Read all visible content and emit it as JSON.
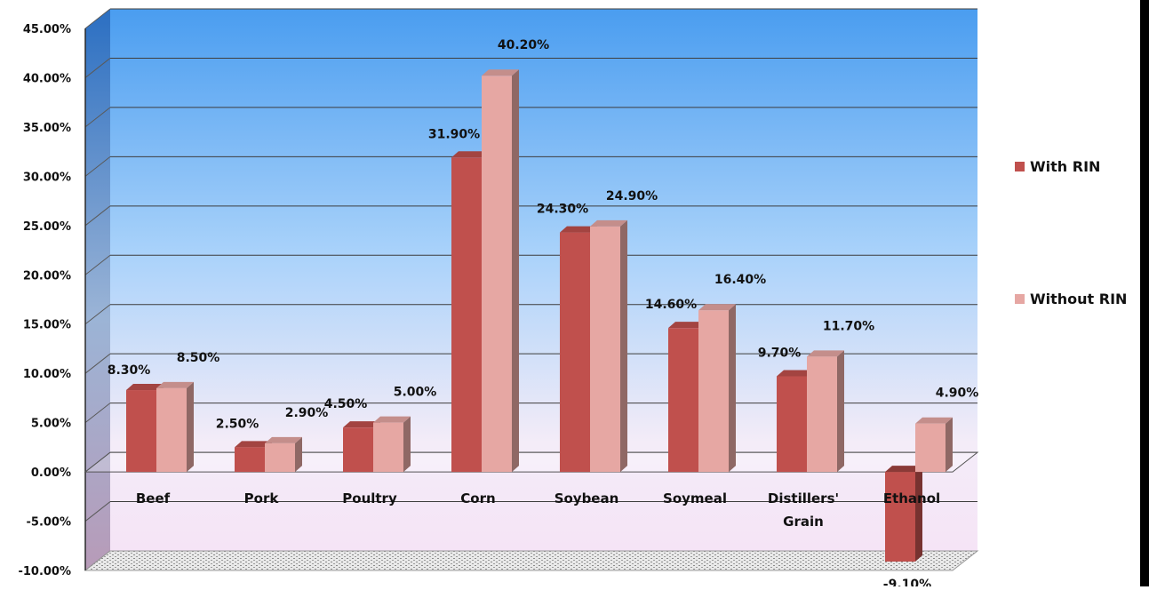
{
  "chart_data": {
    "type": "bar",
    "categories": [
      "Beef",
      "Pork",
      "Poultry",
      "Corn",
      "Soybean",
      "Soymeal",
      "Distillers' Grain",
      "Ethanol"
    ],
    "series": [
      {
        "name": "With RIN",
        "values": [
          8.3,
          2.5,
          4.5,
          31.9,
          24.3,
          14.6,
          9.7,
          -9.1
        ],
        "labels": [
          "8.30%",
          "2.50%",
          "4.50%",
          "31.90%",
          "24.30%",
          "14.60%",
          "9.70%",
          "-9.10%"
        ],
        "color": "#c0504d"
      },
      {
        "name": "Without RIN",
        "values": [
          8.5,
          2.9,
          5.0,
          40.2,
          24.9,
          16.4,
          11.7,
          4.9
        ],
        "labels": [
          "8.50%",
          "2.90%",
          "5.00%",
          "40.20%",
          "24.90%",
          "16.40%",
          "11.70%",
          "4.90%"
        ],
        "color": "#e6a7a3"
      }
    ],
    "ylim": [
      -10,
      45
    ],
    "ytick_values": [
      -10,
      -5,
      0,
      5,
      10,
      15,
      20,
      25,
      30,
      35,
      40,
      45
    ],
    "ytick_labels": [
      "-10.00%",
      "-5.00%",
      "0.00%",
      "5.00%",
      "10.00%",
      "15.00%",
      "20.00%",
      "25.00%",
      "30.00%",
      "35.00%",
      "40.00%",
      "45.00%"
    ],
    "grid": true,
    "legend_position": "right",
    "title": "",
    "xlabel": "",
    "ylabel": ""
  }
}
